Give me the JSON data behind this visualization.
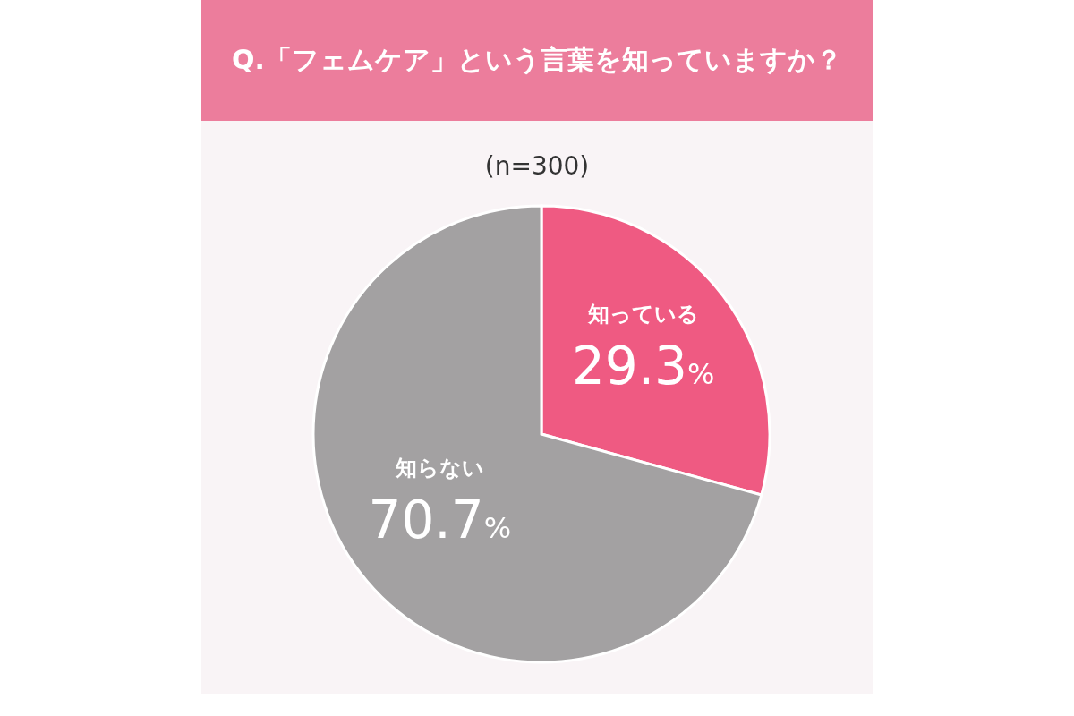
{
  "chart_data": {
    "type": "pie",
    "title": "Q.「フェムケア」という言葉を知っていますか？",
    "subtitle": "(n=300)",
    "categories": [
      "知っている",
      "知らない"
    ],
    "values": [
      29.3,
      70.7
    ],
    "colors": [
      "#ef5a82",
      "#a3a1a2"
    ],
    "value_labels": [
      "29.3%",
      "70.7%"
    ],
    "legend": false
  }
}
